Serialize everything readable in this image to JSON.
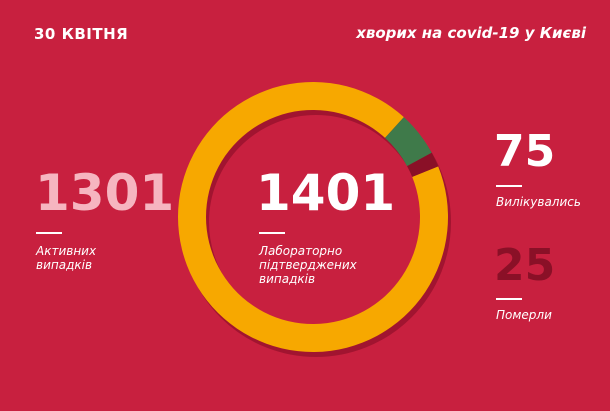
{
  "header": {
    "date": "30 КВІТНЯ",
    "subtitle": "хворих на covid-19 у Києві"
  },
  "center": {
    "value": "1401",
    "label_lines": [
      "Лабораторно",
      "підтверджених",
      "випадків"
    ]
  },
  "active": {
    "value": "1301",
    "label_lines": [
      "Активних",
      "випадків"
    ]
  },
  "recovered": {
    "value": "75",
    "label": "Вилікувались"
  },
  "deaths": {
    "value": "25",
    "label": "Померли"
  },
  "donut": {
    "segments": [
      {
        "key": "active",
        "value": 1301,
        "color": "#f7a800"
      },
      {
        "key": "recovered",
        "value": 75,
        "color": "#3f7a4a"
      },
      {
        "key": "deaths",
        "value": 25,
        "color": "#8a1027"
      }
    ],
    "total": 1401,
    "start_angle_deg": 68
  },
  "colors": {
    "background": "#c8203f",
    "active_number": "#f6b5c0",
    "deaths_number": "#8a1027",
    "text": "#ffffff"
  }
}
